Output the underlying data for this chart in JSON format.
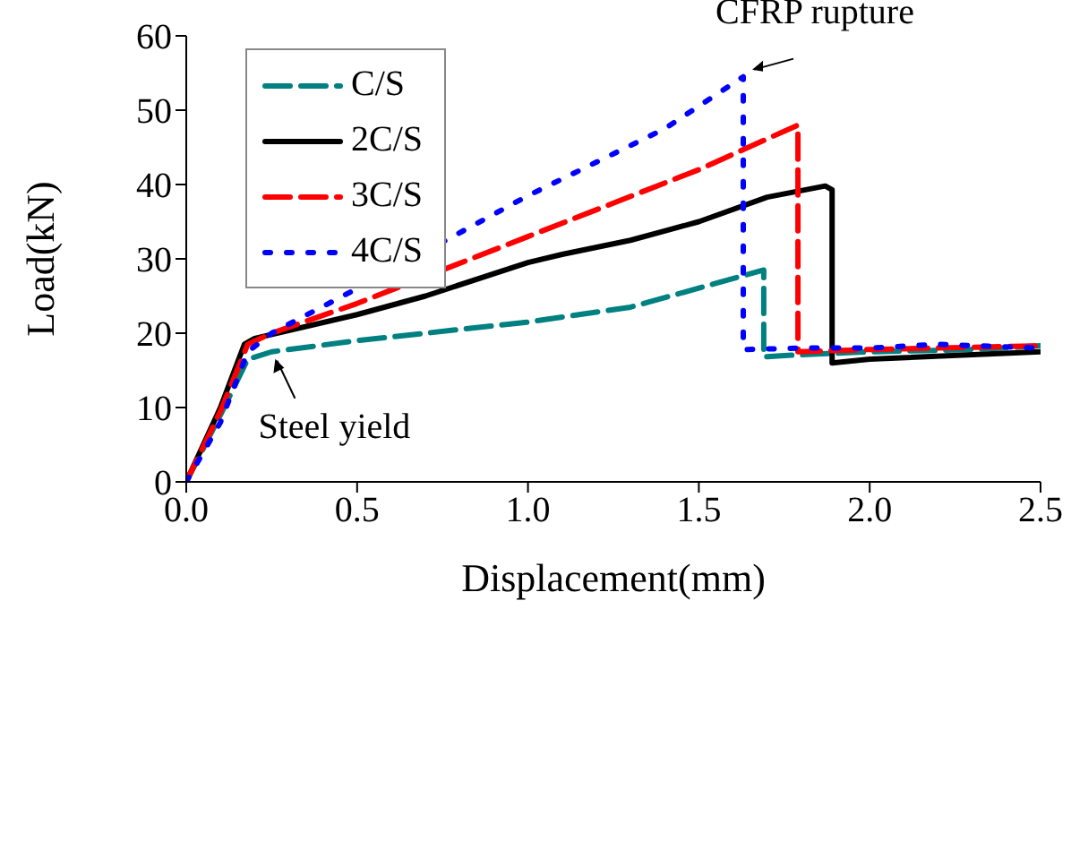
{
  "chart_data": {
    "type": "line",
    "xlabel": "Displacement(mm)",
    "ylabel": "Load(kN)",
    "xlim": [
      0,
      2.5
    ],
    "xticks": [
      {
        "value": 0,
        "label": "0.0"
      },
      0.5,
      {
        "value": 1,
        "label": "1.0"
      },
      1.5,
      {
        "value": 2,
        "label": "2.0"
      },
      2.5
    ],
    "ylim": [
      0,
      60
    ],
    "yticks": [
      0,
      10,
      20,
      30,
      40,
      50,
      60
    ],
    "grid": false,
    "legend": "top left",
    "marker": "none",
    "annotations": [
      {
        "text": "CFRP rupture",
        "x": 1.63,
        "y": 54.5
      },
      {
        "text": "Steel yield",
        "x": 0.25,
        "y": 17.5
      }
    ],
    "series": [
      {
        "name": "C/S",
        "color": "#008080",
        "line_style": "dashed",
        "x": [
          0,
          0.1,
          0.18,
          0.25,
          0.5,
          1.0,
          1.3,
          1.69,
          1.69,
          1.75,
          2.0,
          2.3,
          2.5
        ],
        "values": [
          0,
          9,
          16.5,
          17.5,
          19,
          21.5,
          23.5,
          28.5,
          16.8,
          17,
          17.5,
          17.8,
          18.3
        ]
      },
      {
        "name": "2C/S",
        "color": "#000000",
        "line_style": "solid",
        "x": [
          0,
          0.1,
          0.17,
          0.2,
          0.5,
          0.7,
          1.0,
          1.1,
          1.3,
          1.5,
          1.7,
          1.87,
          1.89,
          1.89,
          2.0,
          2.5
        ],
        "values": [
          0,
          10,
          18.5,
          19.3,
          22.5,
          25,
          29.5,
          30.6,
          32.5,
          35,
          38.3,
          39.8,
          39.3,
          16,
          16.5,
          17.5
        ]
      },
      {
        "name": "3C/S",
        "color": "#ff0000",
        "line_style": "dashed",
        "x": [
          0,
          0.1,
          0.18,
          0.25,
          0.5,
          1.0,
          1.5,
          1.79,
          1.79,
          2.0,
          2.5
        ],
        "values": [
          0,
          9.5,
          18.5,
          20,
          24,
          33,
          42,
          48,
          17.5,
          17.8,
          18.3
        ]
      },
      {
        "name": "4C/S",
        "color": "#0000ff",
        "line_style": "dotted",
        "x": [
          0,
          0.1,
          0.18,
          0.25,
          0.5,
          1.0,
          1.4,
          1.63,
          1.63,
          1.8,
          2.0,
          2.2,
          2.5
        ],
        "values": [
          0,
          8,
          17.5,
          20,
          26,
          38.5,
          47.5,
          54.5,
          17.8,
          18,
          18,
          18.5,
          18
        ]
      }
    ]
  }
}
